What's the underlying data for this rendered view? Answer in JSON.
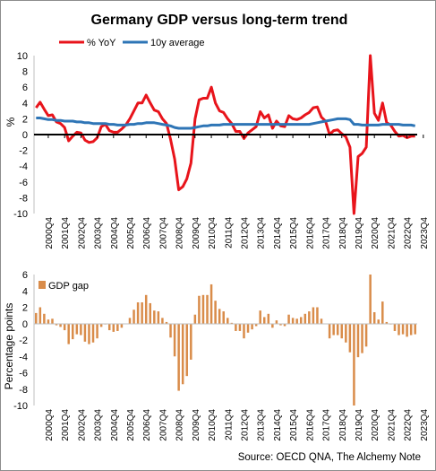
{
  "title": "Germany GDP versus long-term trend",
  "source": "Source: OECD QNA, The Alchemy Note",
  "chart_data": [
    {
      "type": "line",
      "ylabel": "%",
      "ylim": [
        -10,
        10
      ],
      "yticks": [
        -10,
        -8,
        -6,
        -4,
        -2,
        0,
        2,
        4,
        6,
        8,
        10
      ],
      "xtick_labels": [
        "2000Q4",
        "2001Q4",
        "2002Q4",
        "2003Q4",
        "2004Q4",
        "2005Q4",
        "2006Q4",
        "2007Q4",
        "2008Q4",
        "2009Q4",
        "2010Q4",
        "2011Q4",
        "2012Q4",
        "2013Q4",
        "2014Q4",
        "2015Q4",
        "2016Q4",
        "2017Q4",
        "2018Q4",
        "2019Q4",
        "2020Q4",
        "2021Q4",
        "2022Q4",
        "2023Q4"
      ],
      "x_start": "2000Q1",
      "x_end": "2023Q4",
      "legend": "top-left",
      "series": [
        {
          "name": "% YoY",
          "color": "#e8141b",
          "values": [
            3.4,
            4.1,
            3.2,
            2.4,
            2.5,
            1.6,
            1.4,
            0.9,
            -0.8,
            -0.2,
            0.3,
            0.2,
            -0.7,
            -1.0,
            -0.9,
            -0.4,
            1.0,
            1.3,
            0.5,
            0.3,
            0.3,
            0.7,
            1.2,
            2.0,
            3.0,
            4.0,
            4.0,
            5.0,
            4.0,
            3.1,
            2.9,
            2.0,
            1.4,
            -0.6,
            -3.1,
            -7.0,
            -6.6,
            -5.6,
            -3.6,
            2.0,
            4.4,
            4.6,
            4.6,
            6.0,
            4.0,
            3.0,
            2.8,
            2.0,
            1.4,
            0.4,
            0.4,
            -0.5,
            0.2,
            0.6,
            1.0,
            2.9,
            2.1,
            2.5,
            0.8,
            1.7,
            1.1,
            1.0,
            2.4,
            2.0,
            1.9,
            2.1,
            2.5,
            2.8,
            3.4,
            3.5,
            2.2,
            1.7,
            0.0,
            0.5,
            0.6,
            0.1,
            -0.3,
            -1.6,
            -10.0,
            -2.8,
            -2.4,
            -1.6,
            10.0,
            2.7,
            1.8,
            4.0,
            1.5,
            1.2,
            0.4,
            -0.2,
            -0.1,
            -0.4,
            -0.2,
            -0.2
          ]
        },
        {
          "name": "10y average",
          "color": "#2e75b6",
          "values": [
            2.1,
            2.1,
            2.0,
            1.9,
            1.9,
            1.8,
            1.8,
            1.7,
            1.7,
            1.7,
            1.6,
            1.6,
            1.5,
            1.5,
            1.4,
            1.4,
            1.4,
            1.4,
            1.3,
            1.3,
            1.2,
            1.2,
            1.2,
            1.3,
            1.3,
            1.4,
            1.4,
            1.5,
            1.5,
            1.5,
            1.4,
            1.3,
            1.2,
            1.1,
            0.9,
            0.8,
            0.8,
            0.8,
            0.8,
            0.9,
            1.0,
            1.1,
            1.1,
            1.2,
            1.2,
            1.2,
            1.3,
            1.3,
            1.3,
            1.3,
            1.3,
            1.3,
            1.3,
            1.3,
            1.3,
            1.3,
            1.3,
            1.3,
            1.3,
            1.3,
            1.3,
            1.3,
            1.3,
            1.3,
            1.3,
            1.3,
            1.3,
            1.3,
            1.4,
            1.5,
            1.6,
            1.7,
            1.8,
            1.9,
            2.0,
            2.0,
            2.0,
            1.9,
            1.3,
            1.3,
            1.2,
            1.2,
            1.2,
            1.2,
            1.2,
            1.3,
            1.3,
            1.3,
            1.3,
            1.3,
            1.2,
            1.2,
            1.2,
            1.1
          ]
        }
      ]
    },
    {
      "type": "bar",
      "ylabel": "Percentage points",
      "ylim": [
        -10,
        6
      ],
      "yticks": [
        -10,
        -8,
        -6,
        -4,
        -2,
        0,
        2,
        4,
        6
      ],
      "xtick_labels": [
        "2000Q4",
        "2001Q4",
        "2002Q4",
        "2003Q4",
        "2004Q4",
        "2005Q4",
        "2006Q4",
        "2007Q4",
        "2008Q4",
        "2009Q4",
        "2010Q4",
        "2011Q4",
        "2012Q4",
        "2013Q4",
        "2014Q4",
        "2015Q4",
        "2016Q4",
        "2017Q4",
        "2018Q4",
        "2019Q4",
        "2020Q4",
        "2021Q4",
        "2022Q4",
        "2023Q4"
      ],
      "x_start": "2000Q1",
      "x_end": "2023Q4",
      "legend": "top-left",
      "series": [
        {
          "name": "GDP gap",
          "color": "#d98c4a",
          "values": [
            1.3,
            2.0,
            1.2,
            0.5,
            0.6,
            -0.2,
            -0.4,
            -0.8,
            -2.5,
            -1.9,
            -1.3,
            -1.4,
            -2.2,
            -2.5,
            -2.3,
            -1.8,
            -0.4,
            -0.1,
            -0.8,
            -1.0,
            -0.9,
            -0.5,
            0.0,
            0.7,
            1.7,
            2.6,
            2.6,
            3.5,
            2.5,
            1.6,
            1.5,
            0.7,
            0.2,
            -1.7,
            -4.0,
            -8.2,
            -7.4,
            -6.4,
            -4.4,
            1.1,
            3.4,
            3.5,
            3.5,
            4.8,
            2.8,
            1.8,
            1.5,
            0.7,
            0.1,
            -0.9,
            -0.9,
            -1.8,
            -1.1,
            -0.7,
            -0.3,
            1.6,
            0.8,
            1.2,
            -0.5,
            0.4,
            -0.2,
            -0.3,
            1.1,
            0.7,
            0.6,
            0.8,
            1.2,
            1.5,
            2.0,
            2.0,
            0.6,
            0.0,
            -1.8,
            -1.4,
            -1.4,
            -1.8,
            -2.3,
            -3.5,
            -10.0,
            -4.1,
            -3.6,
            -2.8,
            6.0,
            1.4,
            0.5,
            2.7,
            0.2,
            -0.1,
            -0.9,
            -1.4,
            -1.3,
            -1.6,
            -1.4,
            -1.3
          ]
        }
      ]
    }
  ]
}
